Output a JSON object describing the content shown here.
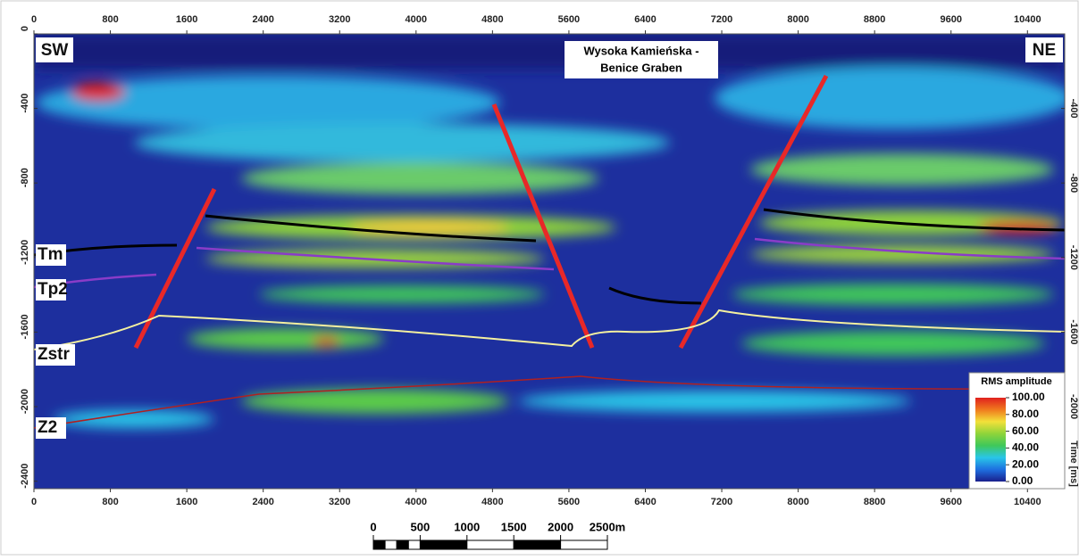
{
  "chart_data": {
    "type": "seismic-section",
    "title": [
      "Wysoka Kamieńska -",
      "Benice Graben"
    ],
    "annotations": {
      "left": "SW",
      "right": "NE"
    },
    "horizons": [
      "Tm",
      "Tp2",
      "Zstr",
      "Z2"
    ],
    "xlim": [
      0,
      10790
    ],
    "xticks": [
      0,
      800,
      1600,
      2400,
      3200,
      4000,
      4800,
      5600,
      6400,
      7200,
      8000,
      8800,
      9600,
      10400
    ],
    "ylim": [
      -2440,
      0
    ],
    "yticks": [
      0,
      -400,
      -800,
      -1200,
      -1600,
      -2000,
      -2400
    ],
    "y2lim": [
      -2440,
      0
    ],
    "y2ticks": [
      -400,
      -800,
      -1200,
      -1600,
      -2000
    ],
    "y2label": "Time [ms]",
    "colorbar": {
      "title": "RMS amplitude",
      "lim": [
        0,
        100
      ],
      "ticks": [
        {
          "value": 100,
          "label": "100.00"
        },
        {
          "value": 80,
          "label": "80.00"
        },
        {
          "value": 60,
          "label": "60.00"
        },
        {
          "value": 40,
          "label": "40.00"
        },
        {
          "value": 20,
          "label": "20.00"
        },
        {
          "value": 0,
          "label": "0.00"
        }
      ],
      "colors": [
        "#1a1f8c",
        "#1e6fe0",
        "#29c6e8",
        "#3fc85a",
        "#8fd43a",
        "#f2e13a",
        "#f07a1e",
        "#e0201e"
      ]
    },
    "scale_bar": {
      "lim": [
        0,
        2500
      ],
      "ticks": [
        0,
        500,
        1000,
        1500,
        2000,
        {
          "value": 2500,
          "label": "2500m"
        }
      ]
    }
  }
}
